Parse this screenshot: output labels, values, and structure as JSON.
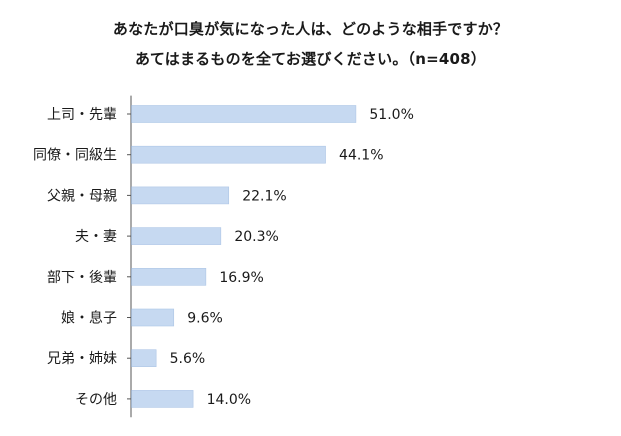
{
  "chart_data": {
    "type": "bar",
    "orientation": "horizontal",
    "title_lines": [
      "あなたが口臭が気になった人は、どのような相手ですか？",
      "あてはまるものを全てお選びください。（n=408）"
    ],
    "categories": [
      "上司・先輩",
      "同僚・同級生",
      "父親・母親",
      "夫・妻",
      "部下・後輩",
      "娘・息子",
      "兄弟・姉妹",
      "その他"
    ],
    "values": [
      51.0,
      44.1,
      22.1,
      20.3,
      16.9,
      9.6,
      5.6,
      14.0
    ],
    "value_labels": [
      "51.0%",
      "44.1%",
      "22.1%",
      "20.3%",
      "16.9%",
      "9.6%",
      "5.6%",
      "14.0%"
    ],
    "unit": "%",
    "xlim": [
      0,
      100
    ],
    "grid": false,
    "legend": "none",
    "colors": {
      "bar_fill": "#c6d9f1",
      "bar_stroke": "#aec6e6",
      "axis": "#555555",
      "text": "#1a1a1a"
    }
  }
}
